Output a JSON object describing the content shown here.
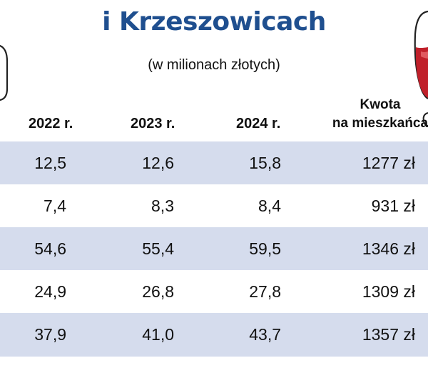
{
  "colors": {
    "title": "#1f4f8f",
    "band": "#d5dced",
    "wine": "#c0202a",
    "outline": "#222222"
  },
  "icons": [
    "bottle-icon",
    "wine-glass-icon"
  ],
  "chart_data": {
    "type": "table",
    "title": "i Krzeszowicach",
    "subtitle": "(w milionach złotych)",
    "columns": [
      "2022 r.",
      "2023 r.",
      "2024 r.",
      "Kwota na mieszkańca"
    ],
    "amount_header_line1": "Kwota",
    "amount_header_line2": "na mieszkańca",
    "rows": [
      [
        "12,5",
        "12,6",
        "15,8",
        "1277 zł"
      ],
      [
        "7,4",
        "8,3",
        "8,4",
        "931 zł"
      ],
      [
        "54,6",
        "55,4",
        "59,5",
        "1346 zł"
      ],
      [
        "24,9",
        "26,8",
        "27,8",
        "1309 zł"
      ],
      [
        "37,9",
        "41,0",
        "43,7",
        "1357 zł"
      ]
    ],
    "values": {
      "2022": [
        12.5,
        7.4,
        54.6,
        24.9,
        37.9
      ],
      "2023": [
        12.6,
        8.3,
        55.4,
        26.8,
        41.0
      ],
      "2024": [
        15.8,
        8.4,
        59.5,
        27.8,
        43.7
      ],
      "per_capita_zl": [
        1277,
        931,
        1346,
        1309,
        1357
      ]
    }
  }
}
